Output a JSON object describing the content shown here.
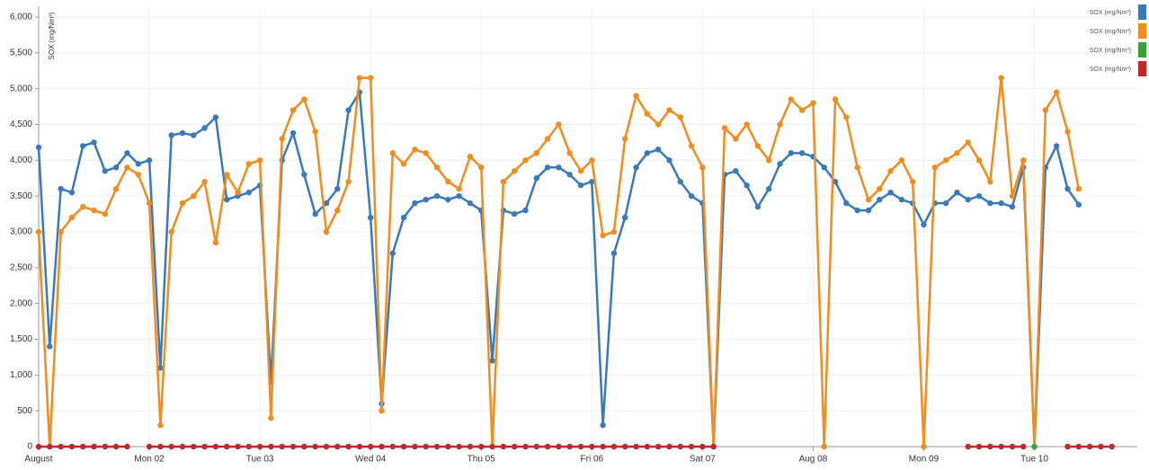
{
  "chart_data": {
    "type": "line",
    "y_label": "SOX (mg/Nm³)",
    "grid": true,
    "legend": "top-right",
    "x": [
      0,
      0.1,
      0.2,
      0.3,
      0.4,
      0.5,
      0.6,
      0.7,
      0.8,
      0.9,
      1,
      1.1,
      1.2,
      1.3,
      1.4,
      1.5,
      1.6,
      1.7,
      1.8,
      1.9,
      2,
      2.1,
      2.2,
      2.3,
      2.4,
      2.5,
      2.6,
      2.7,
      2.8,
      2.9,
      3,
      3.1,
      3.2,
      3.3,
      3.4,
      3.5,
      3.6,
      3.7,
      3.8,
      3.9,
      4,
      4.1,
      4.2,
      4.3,
      4.4,
      4.5,
      4.6,
      4.7,
      4.8,
      4.9,
      5,
      5.1,
      5.2,
      5.3,
      5.4,
      5.5,
      5.6,
      5.7,
      5.8,
      5.9,
      6,
      6.1,
      6.2,
      6.3,
      6.4,
      6.5,
      6.6,
      6.7,
      6.8,
      6.9,
      7,
      7.1,
      7.2,
      7.3,
      7.4,
      7.5,
      7.6,
      7.7,
      7.8,
      7.9,
      8,
      8.1,
      8.2,
      8.3,
      8.4,
      8.5,
      8.6,
      8.7,
      8.8,
      8.9,
      9,
      9.1,
      9.2,
      9.3,
      9.4,
      9.5,
      9.6,
      9.7
    ],
    "xlim": [
      0,
      9.93
    ],
    "xticks": [
      {
        "value": 0,
        "label": "August"
      },
      {
        "value": 1,
        "label": "Mon 02"
      },
      {
        "value": 2,
        "label": "Tue 03"
      },
      {
        "value": 3,
        "label": "Wed 04"
      },
      {
        "value": 4,
        "label": "Thu 05"
      },
      {
        "value": 5,
        "label": "Fri 06"
      },
      {
        "value": 6,
        "label": "Sat 07"
      },
      {
        "value": 7,
        "label": "Aug 08"
      },
      {
        "value": 8,
        "label": "Mon 09"
      },
      {
        "value": 9,
        "label": "Tue 10"
      }
    ],
    "ylim": [
      0,
      6000
    ],
    "yticks": [
      0,
      500,
      {
        "value": 1000,
        "label": "1,000"
      },
      {
        "value": 1500,
        "label": "1,500"
      },
      {
        "value": 2000,
        "label": "2,000"
      },
      {
        "value": 2500,
        "label": "2,500"
      },
      {
        "value": 3000,
        "label": "3,000"
      },
      {
        "value": 3500,
        "label": "3,500"
      },
      {
        "value": 4000,
        "label": "4,000"
      },
      {
        "value": 4500,
        "label": "4,500"
      },
      {
        "value": 5000,
        "label": "5,000"
      },
      {
        "value": 5500,
        "label": "5,500"
      },
      {
        "value": 6000,
        "label": "6,000"
      }
    ],
    "series": [
      {
        "name": "SOX (mg/Nm³)",
        "color": "#3a7ab8",
        "values": [
          4180,
          1400,
          3600,
          3550,
          4200,
          4250,
          3850,
          3900,
          4100,
          3950,
          4000,
          1100,
          4350,
          4380,
          4350,
          4450,
          4600,
          3450,
          3500,
          3550,
          3650,
          900,
          4000,
          4380,
          3800,
          3250,
          3400,
          3600,
          4700,
          4950,
          3200,
          600,
          2700,
          3200,
          3400,
          3450,
          3500,
          3450,
          3500,
          3400,
          3300,
          1200,
          3300,
          3250,
          3300,
          3750,
          3900,
          3900,
          3800,
          3650,
          3700,
          300,
          2700,
          3200,
          3900,
          4100,
          4150,
          4000,
          3700,
          3500,
          3400,
          0,
          3800,
          3850,
          3650,
          3350,
          3600,
          3950,
          4100,
          4100,
          4050,
          3900,
          3700,
          3400,
          3300,
          3300,
          3450,
          3550,
          3450,
          3400,
          3100,
          3400,
          3400,
          3550,
          3450,
          3500,
          3400,
          3400,
          3350,
          3900,
          0,
          3900,
          4200,
          3600,
          3380,
          null,
          null,
          null
        ]
      },
      {
        "name": "SOX (mg/Nm³)",
        "color": "#f28c1e",
        "values": [
          3000,
          0,
          3000,
          3200,
          3350,
          3300,
          3250,
          3600,
          3900,
          3800,
          3400,
          300,
          3000,
          3400,
          3500,
          3700,
          2850,
          3800,
          3550,
          3950,
          4000,
          400,
          4300,
          4700,
          4850,
          4400,
          3000,
          3300,
          3700,
          5150,
          5150,
          500,
          4100,
          3950,
          4150,
          4100,
          3900,
          3700,
          3600,
          4050,
          3900,
          0,
          3700,
          3850,
          4000,
          4100,
          4300,
          4500,
          4100,
          3850,
          4000,
          2950,
          3000,
          4300,
          4900,
          4650,
          4500,
          4700,
          4600,
          4200,
          3900,
          0,
          4450,
          4300,
          4500,
          4200,
          4000,
          4500,
          4850,
          4700,
          4800,
          0,
          4850,
          4600,
          3900,
          3450,
          3600,
          3850,
          4000,
          3700,
          0,
          3900,
          4000,
          4100,
          4250,
          4000,
          3700,
          5150,
          3500,
          4000,
          0,
          4700,
          4950,
          4400,
          3600,
          null,
          null,
          null
        ]
      },
      {
        "name": "SOX (mg/Nm³)",
        "color": "#3aa13a",
        "values": [
          null,
          null,
          null,
          null,
          null,
          null,
          null,
          null,
          null,
          null,
          null,
          null,
          null,
          null,
          null,
          null,
          null,
          null,
          null,
          null,
          null,
          null,
          null,
          null,
          null,
          null,
          null,
          null,
          null,
          null,
          null,
          null,
          null,
          null,
          null,
          null,
          null,
          null,
          null,
          null,
          null,
          null,
          null,
          null,
          null,
          null,
          null,
          null,
          null,
          null,
          null,
          null,
          null,
          null,
          null,
          null,
          null,
          null,
          null,
          null,
          null,
          null,
          null,
          null,
          null,
          null,
          null,
          null,
          null,
          null,
          null,
          null,
          null,
          null,
          null,
          null,
          null,
          null,
          null,
          null,
          null,
          null,
          null,
          null,
          null,
          null,
          null,
          null,
          null,
          null,
          0,
          null,
          null,
          null,
          null,
          null,
          null,
          null
        ]
      },
      {
        "name": "SOX (mg/Nm³)",
        "color": "#c0282a",
        "values": [
          0,
          0,
          0,
          0,
          0,
          0,
          0,
          0,
          0,
          null,
          0,
          0,
          0,
          0,
          0,
          0,
          0,
          0,
          0,
          0,
          0,
          0,
          0,
          0,
          0,
          0,
          0,
          0,
          0,
          0,
          0,
          0,
          0,
          0,
          0,
          0,
          0,
          0,
          0,
          0,
          0,
          0,
          0,
          0,
          0,
          0,
          0,
          0,
          0,
          0,
          0,
          0,
          0,
          0,
          0,
          0,
          0,
          0,
          0,
          0,
          0,
          0,
          null,
          null,
          null,
          null,
          null,
          null,
          null,
          null,
          null,
          null,
          null,
          null,
          null,
          null,
          null,
          null,
          null,
          null,
          null,
          null,
          null,
          null,
          0,
          0,
          0,
          0,
          0,
          0,
          null,
          null,
          null,
          0,
          0,
          0,
          0,
          0
        ]
      }
    ]
  }
}
